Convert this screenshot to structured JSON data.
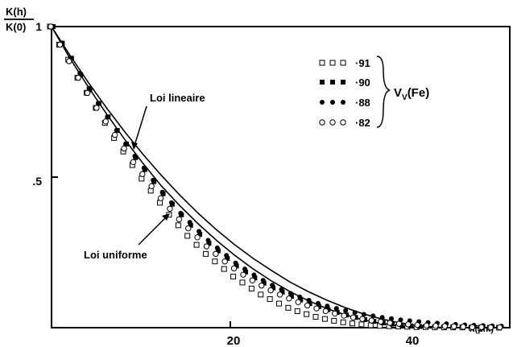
{
  "chart_data": {
    "type": "scatter",
    "ylabel_num": "K(h)",
    "ylabel_den": "K(0)",
    "xlabel": "h(µm)",
    "xlim": [
      0,
      50
    ],
    "ylim": [
      0,
      1
    ],
    "x_ticks": [
      {
        "value": 20,
        "label": "20"
      },
      {
        "value": 40,
        "label": "40"
      }
    ],
    "y_ticks": [
      {
        "value": 1,
        "label": "1"
      },
      {
        "value": 0.5,
        "label": ".5"
      }
    ],
    "legend_group_label": "V",
    "legend_group_sub": "V",
    "legend_group_suffix": "(Fe)",
    "series": [
      {
        "name": "·91",
        "marker": "open-square",
        "x": [
          0,
          1,
          2,
          3,
          4,
          5,
          6,
          7,
          8,
          9,
          10,
          11,
          12,
          13,
          14,
          15,
          16,
          17,
          18,
          19,
          20,
          21,
          22,
          23,
          24,
          25,
          26,
          27,
          28,
          29,
          30,
          31,
          32,
          33,
          34,
          35,
          36,
          37,
          38,
          39,
          40,
          41,
          42,
          43,
          44,
          45,
          46,
          47,
          48,
          49
        ],
        "y": [
          1.0,
          0.94,
          0.89,
          0.83,
          0.78,
          0.73,
          0.68,
          0.63,
          0.585,
          0.54,
          0.495,
          0.455,
          0.415,
          0.375,
          0.34,
          0.305,
          0.275,
          0.245,
          0.22,
          0.195,
          0.17,
          0.15,
          0.13,
          0.11,
          0.095,
          0.08,
          0.066,
          0.055,
          0.045,
          0.036,
          0.029,
          0.023,
          0.018,
          0.014,
          0.011,
          0.008,
          0.006,
          0.005,
          0.004,
          0.003,
          0.002,
          0.002,
          0.001,
          0.001,
          0.001,
          0.001,
          0.0,
          0.0,
          0.0,
          0.0
        ]
      },
      {
        "name": "·90",
        "marker": "filled-square",
        "x": [
          0,
          1,
          2,
          3,
          4,
          5,
          6,
          7,
          8,
          9,
          10,
          11,
          12,
          13,
          14,
          15,
          16,
          17,
          18,
          19,
          20,
          21,
          22,
          23,
          24,
          25,
          26,
          27,
          28,
          29,
          30,
          31,
          32,
          33,
          34,
          35,
          36,
          37,
          38,
          39,
          40
        ],
        "y": [
          1.0,
          0.945,
          0.895,
          0.84,
          0.79,
          0.745,
          0.7,
          0.655,
          0.61,
          0.565,
          0.525,
          0.485,
          0.445,
          0.41,
          0.375,
          0.34,
          0.31,
          0.28,
          0.255,
          0.23,
          0.205,
          0.185,
          0.165,
          0.148,
          0.132,
          0.118,
          0.104,
          0.092,
          0.08,
          0.07,
          0.06,
          0.051,
          0.042,
          0.034,
          0.027,
          0.021,
          0.016,
          0.012,
          0.009,
          0.006,
          0.004
        ]
      },
      {
        "name": "·88",
        "marker": "filled-circle",
        "x": [
          0,
          1,
          2,
          3,
          4,
          5,
          6,
          7,
          8,
          9,
          10,
          11,
          12,
          13,
          14,
          15,
          16,
          17,
          18,
          19,
          20,
          21,
          22,
          23,
          24,
          25,
          26,
          27,
          28,
          29,
          30,
          31,
          32,
          33,
          34,
          35,
          36,
          37,
          38,
          39,
          40,
          41,
          42,
          43,
          44,
          45,
          46,
          47,
          48,
          49
        ],
        "y": [
          1.0,
          0.945,
          0.895,
          0.845,
          0.795,
          0.745,
          0.7,
          0.655,
          0.61,
          0.57,
          0.53,
          0.49,
          0.45,
          0.415,
          0.38,
          0.35,
          0.32,
          0.29,
          0.265,
          0.24,
          0.215,
          0.195,
          0.175,
          0.157,
          0.141,
          0.127,
          0.114,
          0.102,
          0.091,
          0.081,
          0.072,
          0.064,
          0.057,
          0.05,
          0.044,
          0.039,
          0.034,
          0.03,
          0.026,
          0.023,
          0.02,
          0.017,
          0.015,
          0.013,
          0.011,
          0.009,
          0.008,
          0.007,
          0.006,
          0.005
        ]
      },
      {
        "name": "·82",
        "marker": "open-circle",
        "x": [
          0,
          1,
          2,
          3,
          4,
          5,
          6,
          7,
          8,
          9,
          10,
          11,
          12,
          13,
          14,
          15,
          16,
          17,
          18,
          19,
          20,
          21,
          22,
          23,
          24,
          25,
          26,
          27,
          28,
          29,
          30,
          31,
          32,
          33,
          34,
          35,
          36,
          37,
          38,
          39,
          40,
          41,
          42,
          43,
          44,
          45,
          46,
          47,
          48,
          49
        ],
        "y": [
          1.0,
          0.94,
          0.885,
          0.83,
          0.78,
          0.73,
          0.685,
          0.64,
          0.595,
          0.55,
          0.51,
          0.47,
          0.43,
          0.395,
          0.36,
          0.33,
          0.3,
          0.27,
          0.245,
          0.22,
          0.197,
          0.176,
          0.157,
          0.14,
          0.124,
          0.11,
          0.097,
          0.085,
          0.074,
          0.064,
          0.055,
          0.047,
          0.04,
          0.034,
          0.029,
          0.024,
          0.02,
          0.016,
          0.013,
          0.011,
          0.009,
          0.007,
          0.006,
          0.005,
          0.004,
          0.003,
          0.002,
          0.002,
          0.001,
          0.001
        ]
      }
    ],
    "curves": [
      {
        "name": "Loi lineaire",
        "x": [
          0,
          2,
          4,
          6,
          8,
          10,
          12,
          14,
          16,
          18,
          20,
          22,
          24,
          26,
          28,
          30,
          32,
          34,
          36,
          38,
          40,
          42,
          44,
          46
        ],
        "y": [
          1.0,
          0.905,
          0.815,
          0.73,
          0.65,
          0.575,
          0.505,
          0.44,
          0.38,
          0.325,
          0.275,
          0.23,
          0.19,
          0.152,
          0.12,
          0.092,
          0.067,
          0.046,
          0.029,
          0.016,
          0.007,
          0.002,
          0.0,
          0.0
        ]
      },
      {
        "name": "Loi uniforme",
        "x": [
          0,
          2,
          4,
          6,
          8,
          10,
          12,
          14,
          16,
          18,
          20,
          22,
          24,
          26,
          28,
          30,
          32,
          34,
          36,
          38,
          40,
          42,
          44,
          46
        ],
        "y": [
          1.0,
          0.895,
          0.8,
          0.71,
          0.625,
          0.545,
          0.47,
          0.405,
          0.345,
          0.29,
          0.24,
          0.195,
          0.155,
          0.12,
          0.09,
          0.064,
          0.043,
          0.026,
          0.014,
          0.006,
          0.002,
          0.0,
          0.0,
          0.0
        ]
      }
    ],
    "annotations": [
      {
        "text": "Loi lineaire",
        "target": "Loi lineaire"
      },
      {
        "text": "Loi uniforme",
        "target": "Loi uniforme"
      }
    ]
  }
}
